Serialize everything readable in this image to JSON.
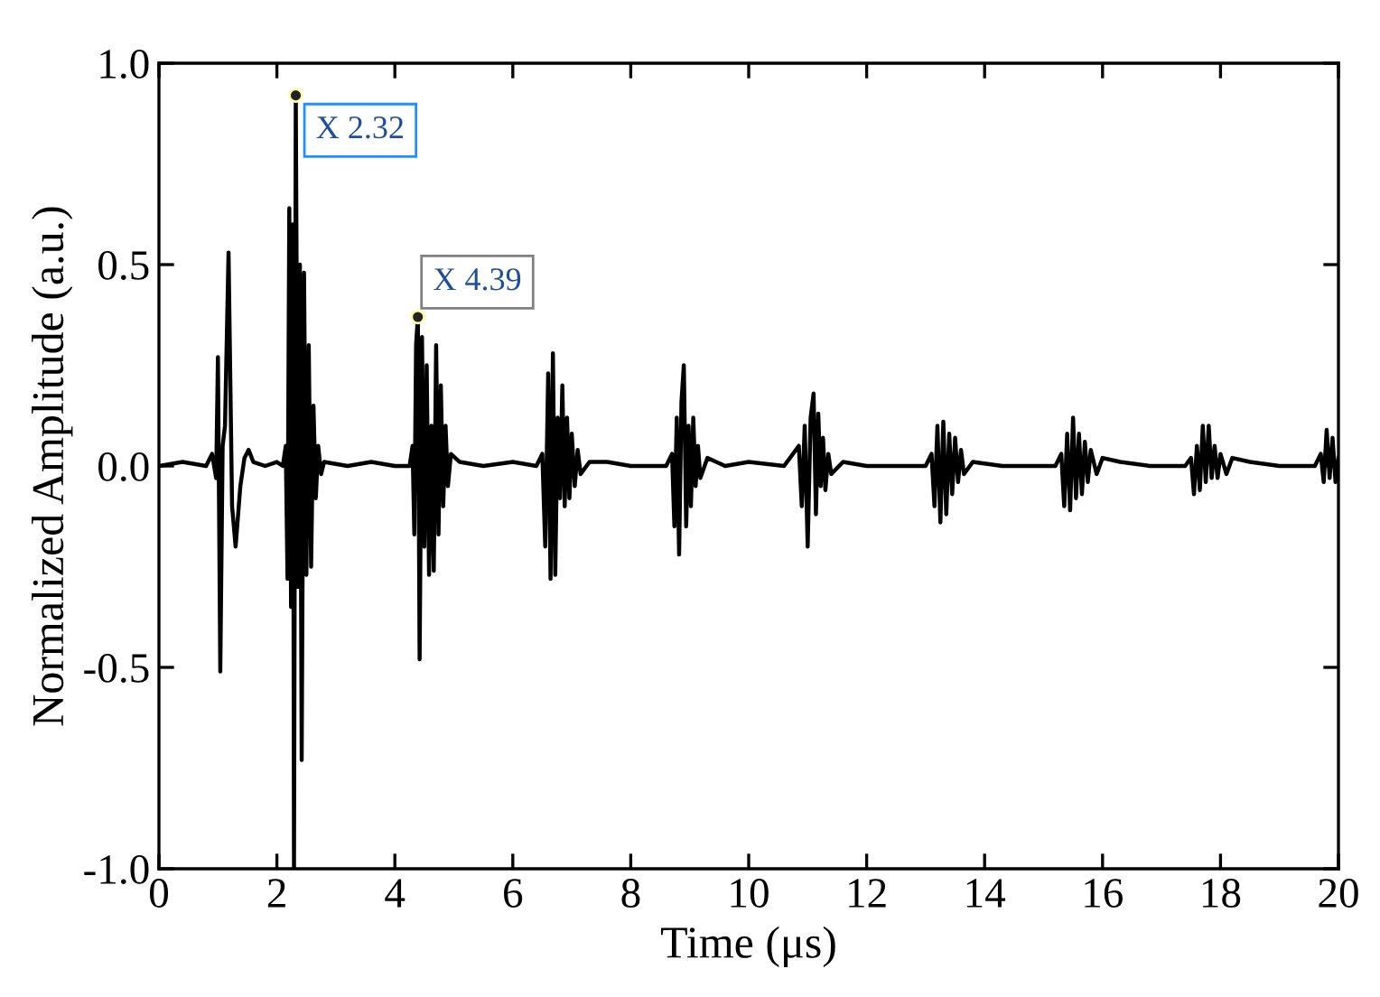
{
  "chart_data": {
    "type": "line",
    "xlabel": "Time (μs)",
    "ylabel": "Normalized Amplitude (a.u.)",
    "xlim": [
      0,
      20
    ],
    "ylim": [
      -1.0,
      1.0
    ],
    "xticks": [
      0,
      2,
      4,
      6,
      8,
      10,
      12,
      14,
      16,
      18,
      20
    ],
    "yticks": [
      {
        "value": -1,
        "label": "-1.0"
      },
      -0.5,
      {
        "value": 0,
        "label": "0.0"
      },
      0.5,
      {
        "value": 1,
        "label": "1.0"
      }
    ],
    "grid": false,
    "legend": false,
    "marker": "none",
    "line_style": "solid",
    "series": [
      {
        "color": "#000000",
        "x": [
          0,
          0.4,
          0.8,
          0.9,
          0.97,
          1.0,
          1.04,
          1.08,
          1.12,
          1.18,
          1.24,
          1.3,
          1.38,
          1.45,
          1.52,
          1.6,
          1.8,
          2.0,
          2.1,
          2.15,
          2.18,
          2.21,
          2.24,
          2.27,
          2.29,
          2.32,
          2.36,
          2.39,
          2.42,
          2.46,
          2.5,
          2.54,
          2.58,
          2.62,
          2.66,
          2.7,
          2.75,
          2.8,
          3.2,
          3.6,
          4.0,
          4.25,
          4.3,
          4.33,
          4.36,
          4.39,
          4.42,
          4.46,
          4.5,
          4.54,
          4.58,
          4.62,
          4.66,
          4.7,
          4.74,
          4.78,
          4.82,
          4.86,
          4.9,
          4.95,
          5.1,
          5.5,
          6.0,
          6.4,
          6.5,
          6.55,
          6.6,
          6.64,
          6.68,
          6.72,
          6.76,
          6.8,
          6.84,
          6.88,
          6.92,
          6.96,
          7.0,
          7.05,
          7.1,
          7.15,
          7.3,
          7.6,
          8.0,
          8.6,
          8.7,
          8.74,
          8.78,
          8.82,
          8.86,
          8.9,
          8.94,
          8.98,
          9.02,
          9.06,
          9.1,
          9.14,
          9.18,
          9.3,
          9.6,
          10.0,
          10.6,
          10.85,
          10.9,
          10.95,
          11.0,
          11.05,
          11.1,
          11.14,
          11.18,
          11.22,
          11.26,
          11.3,
          11.35,
          11.4,
          11.6,
          12.0,
          12.6,
          13.0,
          13.1,
          13.15,
          13.2,
          13.25,
          13.3,
          13.35,
          13.4,
          13.45,
          13.5,
          13.55,
          13.6,
          13.65,
          13.8,
          14.3,
          15.0,
          15.2,
          15.3,
          15.35,
          15.4,
          15.45,
          15.5,
          15.55,
          15.6,
          15.65,
          15.7,
          15.75,
          15.8,
          15.9,
          16.0,
          16.3,
          16.8,
          17.4,
          17.5,
          17.55,
          17.6,
          17.65,
          17.7,
          17.75,
          17.8,
          17.85,
          17.9,
          17.95,
          18.0,
          18.1,
          18.2,
          18.5,
          19.0,
          19.6,
          19.7,
          19.75,
          19.8,
          19.85,
          19.9,
          19.95,
          20.0
        ],
        "values": [
          0,
          0.01,
          0,
          0.03,
          -0.03,
          0.27,
          -0.51,
          0.05,
          0.1,
          0.53,
          -0.1,
          -0.2,
          -0.05,
          0.02,
          0.04,
          0.01,
          0,
          0.01,
          0,
          0.05,
          -0.28,
          0.64,
          -0.35,
          0.6,
          -1.0,
          0.92,
          -0.3,
          0.5,
          -0.73,
          0.48,
          -0.27,
          0.3,
          -0.25,
          0.15,
          -0.08,
          0.05,
          -0.02,
          0.01,
          0,
          0.01,
          0,
          0,
          0.05,
          -0.17,
          0.3,
          0.37,
          -0.48,
          0.32,
          -0.2,
          0.25,
          -0.27,
          0.1,
          -0.26,
          0.3,
          -0.17,
          0.2,
          -0.1,
          0.1,
          -0.05,
          0.03,
          0.01,
          0,
          0.01,
          0,
          0.03,
          -0.2,
          0.23,
          -0.28,
          0.28,
          -0.27,
          0.12,
          -0.08,
          0.2,
          -0.1,
          0.12,
          -0.08,
          0.08,
          -0.05,
          0.04,
          -0.02,
          0.01,
          0.01,
          0,
          0,
          0.03,
          -0.15,
          0.12,
          -0.22,
          0.16,
          0.25,
          -0.15,
          0.1,
          -0.1,
          0.12,
          -0.05,
          0.05,
          -0.03,
          0.02,
          0,
          0.01,
          0,
          0.05,
          -0.1,
          0.1,
          -0.2,
          0.12,
          0.18,
          -0.12,
          0.13,
          -0.05,
          0.07,
          -0.06,
          0.03,
          -0.02,
          0.01,
          0,
          0,
          0,
          0.03,
          -0.1,
          0.1,
          -0.14,
          0.11,
          -0.12,
          0.08,
          -0.07,
          0.07,
          -0.04,
          0.04,
          -0.02,
          0.01,
          0,
          0,
          0,
          0.03,
          -0.1,
          0.08,
          -0.11,
          0.12,
          -0.08,
          0.08,
          -0.07,
          0.06,
          -0.04,
          0.04,
          -0.02,
          0.02,
          0.01,
          0,
          0,
          0.02,
          -0.07,
          0.05,
          -0.06,
          0.1,
          -0.04,
          0.1,
          -0.03,
          0.05,
          -0.03,
          0.03,
          -0.02,
          0.02,
          0.01,
          0,
          0,
          0.03,
          -0.04,
          0.09,
          -0.03,
          0.07,
          -0.04,
          0.02
        ]
      }
    ],
    "annotations": [
      {
        "text": "X 2.32",
        "x": 2.32,
        "y": 0.92
      },
      {
        "text": "X 4.39",
        "x": 4.39,
        "y": 0.37
      }
    ]
  }
}
